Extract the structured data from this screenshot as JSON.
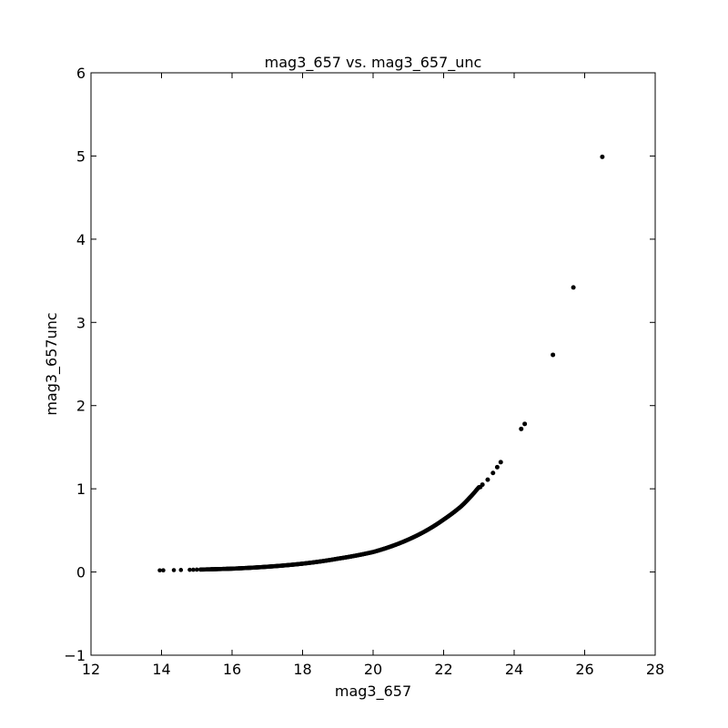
{
  "chart_data": {
    "type": "scatter",
    "title": "mag3_657 vs. mag3_657_unc",
    "xlabel": "mag3_657",
    "ylabel": "mag3_657unc",
    "xlim": [
      12,
      28
    ],
    "ylim": [
      -1,
      6
    ],
    "xticks": [
      "12",
      "14",
      "16",
      "18",
      "20",
      "22",
      "24",
      "26",
      "28"
    ],
    "yticks": [
      "−1",
      "0",
      "1",
      "2",
      "3",
      "4",
      "5",
      "6"
    ],
    "grid": false,
    "marker_color": "#000000",
    "outlier_points": [
      {
        "x": 23.1,
        "y": 1.05
      },
      {
        "x": 23.25,
        "y": 1.11
      },
      {
        "x": 23.4,
        "y": 1.19
      },
      {
        "x": 23.52,
        "y": 1.26
      },
      {
        "x": 23.62,
        "y": 1.32
      },
      {
        "x": 24.2,
        "y": 1.72
      },
      {
        "x": 24.3,
        "y": 1.78
      },
      {
        "x": 25.1,
        "y": 2.61
      },
      {
        "x": 25.68,
        "y": 3.42
      },
      {
        "x": 26.5,
        "y": 4.99
      }
    ],
    "curve": {
      "x_start": 13.95,
      "x_end": 23.05,
      "description_points": [
        {
          "x": 14.0,
          "y": 0.02
        },
        {
          "x": 16.0,
          "y": 0.04
        },
        {
          "x": 18.0,
          "y": 0.1
        },
        {
          "x": 19.0,
          "y": 0.16
        },
        {
          "x": 20.0,
          "y": 0.24
        },
        {
          "x": 21.0,
          "y": 0.39
        },
        {
          "x": 22.0,
          "y": 0.63
        },
        {
          "x": 22.5,
          "y": 0.79
        },
        {
          "x": 23.0,
          "y": 1.02
        }
      ]
    }
  }
}
